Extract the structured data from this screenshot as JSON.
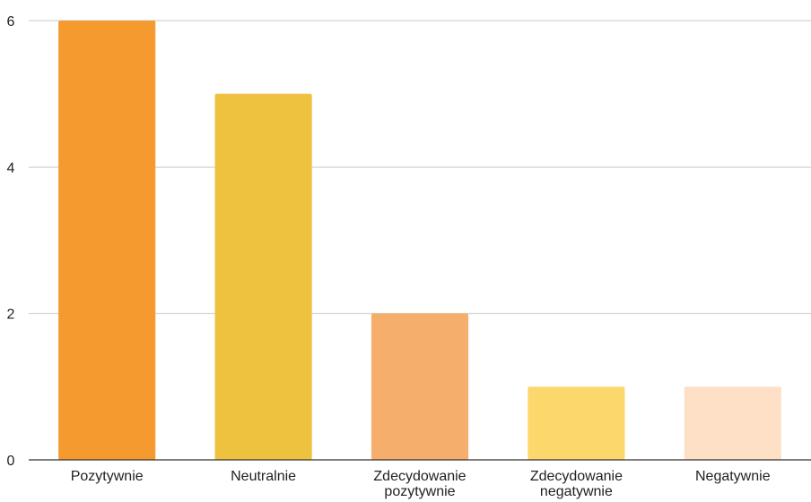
{
  "chart_data": {
    "type": "bar",
    "title": "",
    "xlabel": "",
    "ylabel": "",
    "ylim": [
      0,
      6
    ],
    "yticks": [
      0,
      2,
      4,
      6
    ],
    "grid": true,
    "legend": "none",
    "categories": [
      [
        "Pozytywnie"
      ],
      [
        "Neutralnie"
      ],
      [
        "Zdecydowanie",
        "pozytywnie"
      ],
      [
        "Zdecydowanie",
        "negatywnie"
      ],
      [
        "Negatywnie"
      ]
    ],
    "values": [
      6,
      5,
      2,
      1,
      1
    ],
    "colors": [
      "#F59A2E",
      "#EEC13F",
      "#F5AE6C",
      "#FBD76C",
      "#FDE0C6"
    ]
  }
}
